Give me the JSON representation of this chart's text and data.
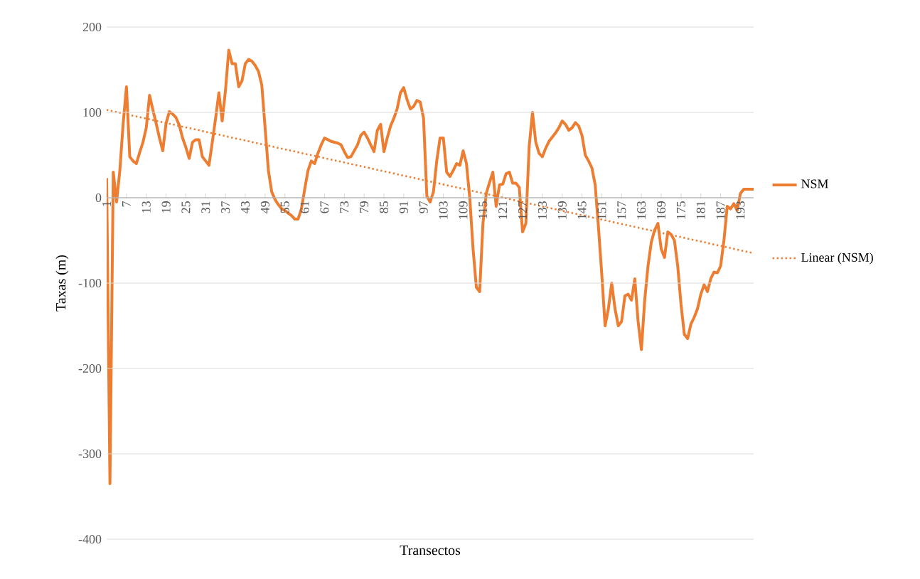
{
  "chart_data": {
    "type": "line",
    "xlabel": "Transectos",
    "ylabel": "Taxas (m)",
    "x": [
      1,
      2,
      3,
      4,
      5,
      6,
      7,
      8,
      9,
      10,
      11,
      12,
      13,
      14,
      15,
      16,
      17,
      18,
      19,
      20,
      21,
      22,
      23,
      24,
      25,
      26,
      27,
      28,
      29,
      30,
      31,
      32,
      33,
      34,
      35,
      36,
      37,
      38,
      39,
      40,
      41,
      42,
      43,
      44,
      45,
      46,
      47,
      48,
      49,
      50,
      51,
      52,
      53,
      54,
      55,
      56,
      57,
      58,
      59,
      60,
      61,
      62,
      63,
      64,
      65,
      66,
      67,
      68,
      69,
      70,
      71,
      72,
      73,
      74,
      75,
      76,
      77,
      78,
      79,
      80,
      81,
      82,
      83,
      84,
      85,
      86,
      87,
      88,
      89,
      90,
      91,
      92,
      93,
      94,
      95,
      96,
      97,
      98,
      99,
      100,
      101,
      102,
      103,
      104,
      105,
      106,
      107,
      108,
      109,
      110,
      111,
      112,
      113,
      114,
      115,
      116,
      117,
      118,
      119,
      120,
      121,
      122,
      123,
      124,
      125,
      126,
      127,
      128,
      129,
      130,
      131,
      132,
      133,
      134,
      135,
      136,
      137,
      138,
      139,
      140,
      141,
      142,
      143,
      144,
      145,
      146,
      147,
      148,
      149,
      150,
      151,
      152,
      153,
      154,
      155,
      156,
      157,
      158,
      159,
      160,
      161,
      162,
      163,
      164,
      165,
      166,
      167,
      168,
      169,
      170,
      171,
      172,
      173,
      174,
      175,
      176,
      177,
      178,
      179,
      180,
      181,
      182,
      183,
      184,
      185,
      186,
      187,
      188,
      189,
      190,
      191,
      192,
      193,
      194,
      195,
      196,
      197
    ],
    "series": [
      {
        "name": "NSM",
        "color": "#ed7d31",
        "line_style": "solid",
        "values": [
          23,
          -335,
          30,
          -5,
          32,
          87,
          130,
          48,
          43,
          40,
          53,
          65,
          82,
          120,
          103,
          87,
          70,
          55,
          87,
          101,
          98,
          94,
          85,
          70,
          59,
          46,
          65,
          68,
          68,
          48,
          43,
          38,
          65,
          93,
          123,
          90,
          126,
          173,
          157,
          157,
          130,
          137,
          157,
          162,
          160,
          155,
          148,
          132,
          82,
          32,
          7,
          -2,
          -8,
          -13,
          -15,
          -18,
          -21,
          -25,
          -25,
          -13,
          10,
          32,
          43,
          40,
          52,
          62,
          70,
          68,
          66,
          65,
          64,
          62,
          54,
          47,
          48,
          55,
          62,
          73,
          77,
          70,
          62,
          54,
          79,
          86,
          54,
          70,
          84,
          93,
          104,
          123,
          129,
          115,
          104,
          107,
          114,
          112,
          93,
          2,
          -5,
          7,
          43,
          70,
          70,
          30,
          25,
          32,
          40,
          38,
          55,
          40,
          0,
          -60,
          -105,
          -110,
          -30,
          5,
          18,
          30,
          -10,
          15,
          16,
          28,
          30,
          17,
          17,
          12,
          -40,
          -30,
          60,
          100,
          65,
          52,
          48,
          58,
          66,
          71,
          76,
          82,
          90,
          86,
          79,
          82,
          88,
          84,
          73,
          50,
          43,
          35,
          15,
          -35,
          -90,
          -150,
          -130,
          -100,
          -130,
          -150,
          -145,
          -115,
          -113,
          -120,
          -95,
          -145,
          -178,
          -120,
          -80,
          -52,
          -38,
          -30,
          -60,
          -70,
          -40,
          -43,
          -50,
          -80,
          -125,
          -160,
          -165,
          -148,
          -140,
          -130,
          -113,
          -102,
          -110,
          -95,
          -87,
          -88,
          -80,
          -50,
          -10,
          -13,
          -7,
          -15,
          5,
          10,
          10,
          10,
          10
        ]
      },
      {
        "name": "Linear (NSM)",
        "color": "#ed7d31",
        "line_style": "dotted",
        "x": [
          1,
          197
        ],
        "values": [
          103,
          -65
        ]
      }
    ],
    "xlim": [
      1,
      197
    ],
    "xticks": [
      1,
      7,
      13,
      19,
      25,
      31,
      37,
      43,
      49,
      55,
      61,
      67,
      73,
      79,
      85,
      91,
      97,
      103,
      109,
      115,
      121,
      127,
      133,
      139,
      145,
      151,
      157,
      163,
      169,
      175,
      181,
      187,
      193
    ],
    "ylim": [
      -400,
      200
    ],
    "yticks": [
      -400,
      -300,
      -200,
      -100,
      0,
      100,
      200
    ],
    "grid": "y",
    "legend": "right",
    "marker": "none"
  }
}
